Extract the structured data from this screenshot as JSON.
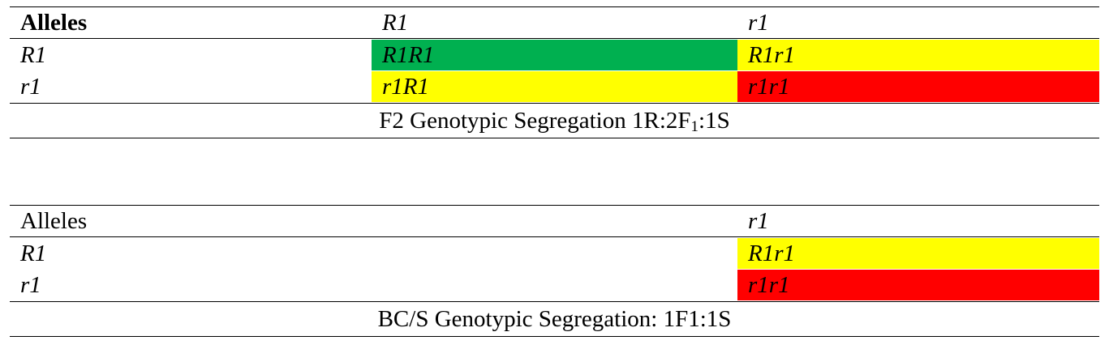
{
  "colors": {
    "homozygous_resistant": "#00b050",
    "heterozygous": "#ffff00",
    "homozygous_susceptible": "#ff0000"
  },
  "table1": {
    "header": [
      "Alleles",
      "R1",
      "r1"
    ],
    "rows": [
      {
        "label": "R1",
        "cells": [
          "R1R1",
          "R1r1"
        ]
      },
      {
        "label": "r1",
        "cells": [
          "r1R1",
          "r1r1"
        ]
      }
    ],
    "caption_before_sub": "F2 Genotypic Segregation 1R:2F",
    "caption_sub": "1",
    "caption_after_sub": ":1S"
  },
  "table2": {
    "header": [
      "Alleles",
      "",
      "r1"
    ],
    "rows": [
      {
        "label": "R1",
        "cells": [
          "",
          "R1r1"
        ]
      },
      {
        "label": "r1",
        "cells": [
          "",
          "r1r1"
        ]
      }
    ],
    "caption": "BC/S Genotypic Segregation: 1F1:1S"
  }
}
